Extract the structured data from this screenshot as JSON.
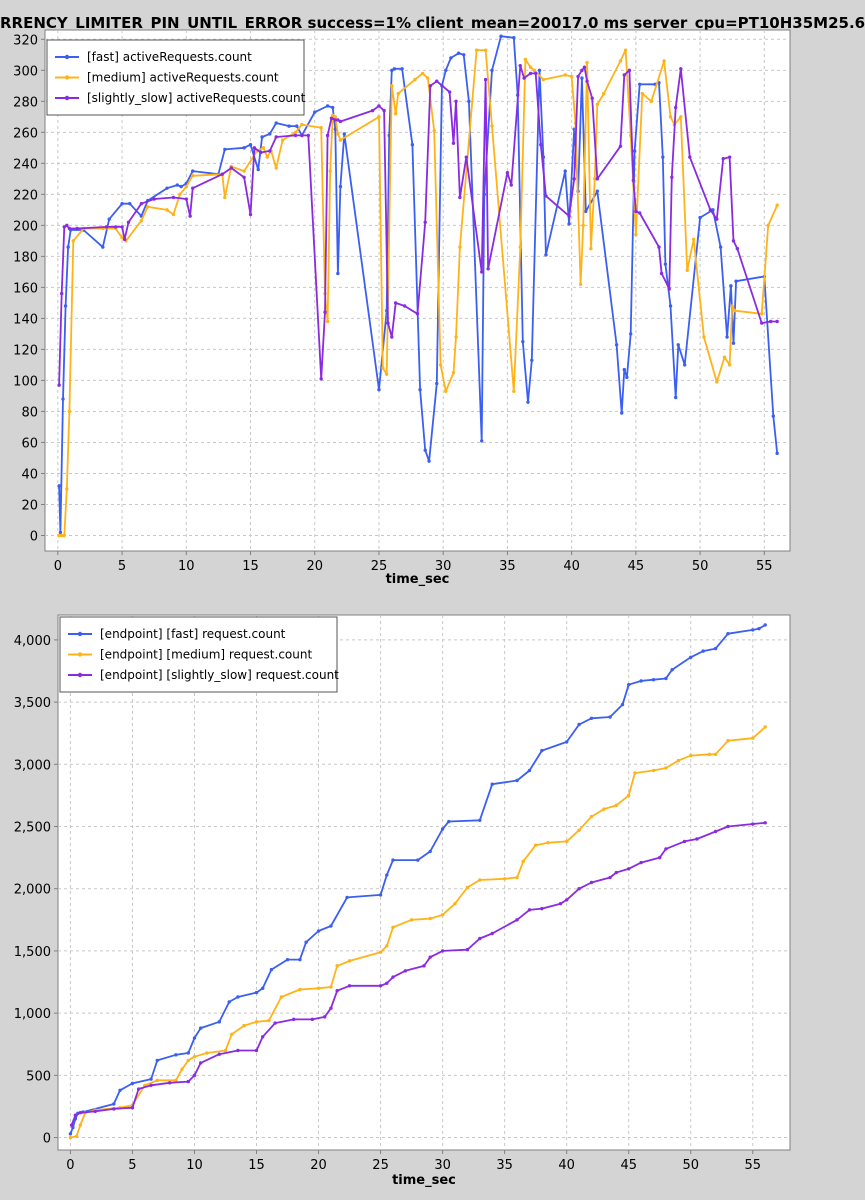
{
  "page": {
    "title": "RRENCY_LIMITER_PIN_UNTIL_ERROR success=1% client_mean=20017.0 ms server_cpu=PT10H35M25.6"
  },
  "chart_data": [
    {
      "type": "line",
      "title": "",
      "xlabel": "time_sec",
      "ylabel": "",
      "xlim": [
        -1,
        57
      ],
      "ylim": [
        -10,
        326
      ],
      "xticks": [
        0,
        5,
        10,
        15,
        20,
        25,
        30,
        35,
        40,
        45,
        50,
        55
      ],
      "yticks": [
        0,
        20,
        40,
        60,
        80,
        100,
        120,
        140,
        160,
        180,
        200,
        220,
        240,
        260,
        280,
        300,
        320
      ],
      "tick_labels_y": [
        "0",
        "20",
        "40",
        "60",
        "80",
        "100",
        "120",
        "140",
        "160",
        "180",
        "200",
        "220",
        "240",
        "260",
        "280",
        "300",
        "320"
      ],
      "grid": true,
      "legend_position": "top-left",
      "series": [
        {
          "name": "[fast] activeRequests.count",
          "color": "#3b5ff2",
          "x": [
            0.1,
            0.2,
            0.4,
            0.6,
            0.8,
            1.0,
            2.0,
            3.5,
            4.0,
            5.0,
            5.6,
            6.5,
            7.0,
            8.5,
            9.3,
            9.6,
            10.0,
            10.5,
            12.5,
            13.0,
            14.5,
            15.0,
            15.6,
            15.9,
            16.5,
            17.0,
            18.0,
            18.6,
            19.0,
            20.0,
            21.0,
            21.4,
            21.6,
            21.8,
            22.0,
            22.3,
            25.0,
            25.6,
            25.8,
            26.0,
            26.2,
            26.8,
            27.6,
            28.2,
            28.6,
            28.9,
            29.5,
            29.9,
            30.2,
            30.6,
            31.2,
            31.6,
            32.0,
            33.0,
            33.2,
            33.8,
            34.5,
            35.5,
            35.8,
            36.2,
            36.6,
            36.9,
            37.5,
            37.8,
            38.0,
            39.5,
            39.8,
            40.2,
            40.5,
            40.8,
            41.1,
            42.0,
            43.5,
            43.9,
            44.1,
            44.3,
            44.6,
            44.9,
            45.3,
            46.5,
            46.8,
            47.1,
            47.3,
            47.7,
            48.1,
            48.3,
            48.8,
            50.0,
            51.0,
            51.6,
            52.1,
            52.4,
            52.6,
            52.8,
            55.0,
            55.7,
            56.0
          ],
          "y": [
            32,
            2,
            88,
            148,
            186,
            197,
            197,
            186,
            204,
            214,
            214,
            206,
            216,
            224,
            226,
            225,
            227,
            235,
            233,
            249,
            250,
            252,
            236,
            257,
            259,
            266,
            264,
            264,
            258,
            273,
            277,
            276,
            262,
            169,
            225,
            259,
            94,
            145,
            258,
            300,
            301,
            301,
            252,
            94,
            55,
            48,
            98,
            290,
            300,
            308,
            311,
            310,
            280,
            61,
            220,
            300,
            322,
            321,
            284,
            125,
            86,
            113,
            300,
            244,
            181,
            235,
            201,
            262,
            222,
            295,
            209,
            222,
            123,
            79,
            107,
            102,
            130,
            248,
            291,
            291,
            292,
            244,
            175,
            148,
            89,
            123,
            110,
            205,
            210,
            186,
            128,
            161,
            124,
            164,
            167,
            77,
            53
          ]
        },
        {
          "name": "[medium] activeRequests.count",
          "color": "#ffb319",
          "x": [
            0.1,
            0.3,
            0.5,
            0.7,
            0.9,
            1.2,
            2.0,
            3.5,
            4.5,
            5.0,
            5.3,
            6.5,
            7.0,
            8.5,
            9.0,
            9.5,
            10.0,
            10.5,
            12.8,
            13.0,
            13.5,
            14.5,
            15.5,
            16.0,
            16.3,
            16.6,
            17.0,
            17.5,
            18.5,
            19.0,
            20.5,
            20.8,
            21.0,
            21.2,
            21.4,
            21.6,
            21.8,
            22.0,
            25.0,
            25.3,
            25.6,
            26.0,
            26.3,
            26.5,
            27.8,
            28.4,
            28.8,
            29.3,
            29.8,
            30.2,
            30.8,
            31.0,
            31.3,
            32.6,
            33.3,
            33.8,
            35.5,
            36.0,
            36.4,
            36.8,
            37.1,
            37.8,
            39.5,
            40.0,
            40.3,
            40.7,
            40.9,
            41.2,
            41.5,
            41.8,
            42.0,
            42.5,
            43.8,
            44.2,
            44.6,
            45.0,
            45.5,
            46.2,
            47.2,
            47.7,
            48.0,
            48.5,
            49.0,
            49.5,
            50.3,
            51.3,
            51.9,
            52.3,
            52.5,
            52.7,
            54.8,
            55.3,
            56.0
          ],
          "y": [
            0,
            0,
            0,
            30,
            80,
            190,
            198,
            198,
            198,
            192,
            190,
            203,
            212,
            210,
            207,
            220,
            225,
            232,
            233,
            218,
            238,
            235,
            248,
            250,
            244,
            248,
            237,
            255,
            260,
            265,
            263,
            156,
            138,
            235,
            271,
            270,
            259,
            255,
            270,
            108,
            104,
            290,
            272,
            285,
            294,
            298,
            295,
            261,
            110,
            93,
            105,
            128,
            186,
            313,
            313,
            264,
            93,
            186,
            307,
            302,
            300,
            294,
            297,
            296,
            266,
            162,
            200,
            305,
            185,
            230,
            278,
            285,
            306,
            313,
            258,
            194,
            285,
            280,
            306,
            270,
            265,
            270,
            171,
            191,
            128,
            99,
            115,
            110,
            148,
            145,
            143,
            200,
            213
          ]
        },
        {
          "name": "[slightly_slow] activeRequests.count",
          "color": "#8a2be2",
          "x": [
            0.1,
            0.3,
            0.5,
            0.7,
            0.9,
            1.5,
            3.8,
            4.5,
            5.0,
            5.2,
            5.5,
            6.5,
            7.5,
            9.0,
            10.0,
            10.3,
            10.5,
            12.8,
            13.5,
            14.5,
            15.0,
            15.3,
            15.8,
            16.5,
            17.0,
            18.5,
            19.0,
            19.5,
            20.5,
            20.8,
            21.0,
            21.3,
            21.6,
            21.8,
            22.0,
            24.5,
            25.0,
            25.4,
            25.7,
            26.0,
            26.3,
            27.0,
            28.0,
            28.6,
            29.0,
            29.5,
            30.5,
            30.8,
            31.0,
            31.3,
            31.8,
            33.0,
            33.3,
            33.5,
            35.0,
            35.3,
            36.0,
            36.3,
            36.8,
            37.2,
            37.6,
            38.0,
            39.8,
            40.2,
            40.5,
            40.8,
            41.0,
            41.2,
            41.6,
            42.0,
            43.8,
            44.1,
            44.5,
            44.8,
            45.0,
            45.3,
            46.8,
            47.0,
            47.6,
            47.8,
            48.1,
            48.5,
            49.2,
            50.8,
            51.3,
            51.8,
            52.3,
            52.6,
            52.9,
            54.8,
            55.5,
            56.0
          ],
          "y": [
            97,
            156,
            199,
            200,
            198,
            198,
            199,
            199,
            199,
            191,
            202,
            214,
            217,
            218,
            217,
            206,
            224,
            233,
            237,
            231,
            207,
            250,
            247,
            248,
            257,
            258,
            258,
            258,
            101,
            144,
            258,
            269,
            268,
            268,
            267,
            274,
            277,
            274,
            137,
            128,
            150,
            148,
            143,
            202,
            290,
            293,
            286,
            253,
            280,
            218,
            244,
            170,
            294,
            172,
            234,
            226,
            303,
            295,
            298,
            298,
            252,
            219,
            206,
            230,
            296,
            300,
            302,
            293,
            282,
            230,
            251,
            297,
            300,
            229,
            209,
            208,
            186,
            169,
            159,
            231,
            276,
            301,
            244,
            210,
            204,
            243,
            244,
            190,
            185,
            137,
            138,
            138
          ]
        }
      ]
    },
    {
      "type": "line",
      "title": "",
      "xlabel": "time_sec",
      "ylabel": "",
      "xlim": [
        -1,
        58
      ],
      "ylim": [
        -100,
        4200
      ],
      "xticks": [
        0,
        5,
        10,
        15,
        20,
        25,
        30,
        35,
        40,
        45,
        50,
        55
      ],
      "yticks": [
        0,
        500,
        1000,
        1500,
        2000,
        2500,
        3000,
        3500,
        4000
      ],
      "tick_labels_y": [
        "0",
        "500",
        "1,000",
        "1,500",
        "2,000",
        "2,500",
        "3,000",
        "3,500",
        "4,000"
      ],
      "grid": true,
      "legend_position": "top-left",
      "series": [
        {
          "name": "[endpoint] [fast] request.count",
          "color": "#3b5ff2",
          "x": [
            0,
            0.2,
            0.4,
            0.6,
            1.0,
            3.5,
            4.0,
            5.0,
            6.5,
            7.0,
            8.5,
            9.5,
            10.0,
            10.5,
            12.0,
            12.8,
            13.5,
            15.0,
            15.5,
            16.2,
            17.5,
            18.5,
            19.0,
            20.0,
            21.0,
            22.3,
            25.0,
            25.5,
            26.0,
            28.0,
            29.0,
            30.0,
            30.5,
            33.0,
            34.0,
            36.0,
            37.0,
            38.0,
            40.0,
            41.0,
            42.0,
            43.5,
            44.5,
            45.0,
            46.0,
            47.0,
            48.0,
            48.5,
            50.0,
            51.0,
            52.0,
            53.0,
            55.0,
            55.5,
            56.0
          ],
          "y": [
            30,
            80,
            150,
            195,
            205,
            270,
            380,
            435,
            470,
            620,
            665,
            680,
            800,
            880,
            930,
            1090,
            1130,
            1165,
            1200,
            1350,
            1430,
            1430,
            1570,
            1660,
            1700,
            1930,
            1950,
            2110,
            2230,
            2230,
            2300,
            2480,
            2540,
            2550,
            2840,
            2870,
            2950,
            3110,
            3180,
            3320,
            3370,
            3380,
            3480,
            3640,
            3670,
            3680,
            3690,
            3760,
            3860,
            3910,
            3930,
            4050,
            4080,
            4090,
            4120
          ]
        },
        {
          "name": "[endpoint] [medium] request.count",
          "color": "#ffb319",
          "x": [
            0,
            0.5,
            0.8,
            1.2,
            2.0,
            4.0,
            5.0,
            6.0,
            7.0,
            8.5,
            9.0,
            9.5,
            10.0,
            11.0,
            12.5,
            13.0,
            14.0,
            15.0,
            16.0,
            17.0,
            18.5,
            20.0,
            21.0,
            21.5,
            22.5,
            25.0,
            25.5,
            26.0,
            27.5,
            29.0,
            30.0,
            31.0,
            32.0,
            33.0,
            35.0,
            36.0,
            36.5,
            37.5,
            38.5,
            40.0,
            41.0,
            42.0,
            43.0,
            44.0,
            45.0,
            45.5,
            47.0,
            48.0,
            49.0,
            50.0,
            51.5,
            52.0,
            53.0,
            55.0,
            56.0
          ],
          "y": [
            0,
            10,
            100,
            200,
            220,
            240,
            260,
            420,
            460,
            460,
            550,
            620,
            650,
            680,
            700,
            830,
            900,
            930,
            940,
            1130,
            1190,
            1200,
            1210,
            1380,
            1420,
            1490,
            1540,
            1690,
            1750,
            1760,
            1790,
            1880,
            2010,
            2070,
            2080,
            2090,
            2220,
            2350,
            2370,
            2380,
            2470,
            2580,
            2640,
            2670,
            2750,
            2930,
            2950,
            2970,
            3030,
            3070,
            3080,
            3080,
            3190,
            3210,
            3300
          ]
        },
        {
          "name": "[endpoint] [slightly_slow] request.count",
          "color": "#8a2be2",
          "x": [
            0.1,
            0.4,
            0.8,
            2.0,
            3.5,
            5.0,
            5.5,
            6.5,
            8.0,
            9.5,
            10.0,
            10.5,
            12.0,
            13.5,
            15.0,
            15.5,
            16.5,
            18.0,
            19.5,
            20.5,
            21.0,
            21.5,
            22.5,
            25.0,
            25.5,
            26.0,
            27.0,
            28.5,
            29.0,
            30.0,
            32.0,
            33.0,
            34.0,
            36.0,
            37.0,
            38.0,
            39.5,
            40.0,
            41.0,
            42.0,
            43.5,
            44.0,
            45.0,
            46.0,
            47.5,
            48.0,
            49.5,
            50.5,
            52.0,
            53.0,
            55.0,
            56.0
          ],
          "y": [
            100,
            180,
            200,
            210,
            230,
            240,
            390,
            420,
            440,
            450,
            500,
            600,
            670,
            700,
            700,
            810,
            920,
            950,
            950,
            970,
            1040,
            1180,
            1220,
            1220,
            1240,
            1290,
            1340,
            1380,
            1450,
            1500,
            1510,
            1600,
            1640,
            1750,
            1830,
            1840,
            1880,
            1910,
            2000,
            2050,
            2090,
            2130,
            2160,
            2210,
            2250,
            2320,
            2380,
            2400,
            2460,
            2500,
            2520,
            2530
          ]
        }
      ]
    }
  ]
}
